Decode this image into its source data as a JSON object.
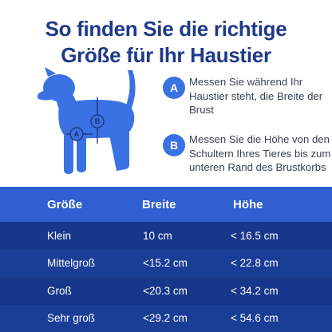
{
  "title": {
    "line1": "So finden Sie die richtige",
    "line2": "Größe für Ihr Haustier"
  },
  "illustration": {
    "label_a": "A",
    "label_b": "B"
  },
  "notes": [
    {
      "badge": "A",
      "text": "Messen Sie während Ihr Haustier steht, die Breite der Brust"
    },
    {
      "badge": "B",
      "text": "Messen Sie die Höhe von den Schultern Ihres Tieres bis zum unteren Rand des Brustkorbs"
    }
  ],
  "table": {
    "headers": [
      "Größe",
      "Breite",
      "Höhe"
    ],
    "rows": [
      [
        "Klein",
        "10 cm",
        "< 16.5 cm"
      ],
      [
        "Mittelgroß",
        "<15.2 cm",
        "< 22.8 cm"
      ],
      [
        "Groß",
        "<20.3 cm",
        "< 34.2 cm"
      ],
      [
        "Sehr groß",
        "<29.2 cm",
        "< 54.6 cm"
      ]
    ]
  },
  "colors": {
    "title": "#1e3a86",
    "dog": "#3a72e4",
    "badge": "#3a72e4",
    "header_bg": "#2f5fd0",
    "row_bg": "#17378a"
  }
}
